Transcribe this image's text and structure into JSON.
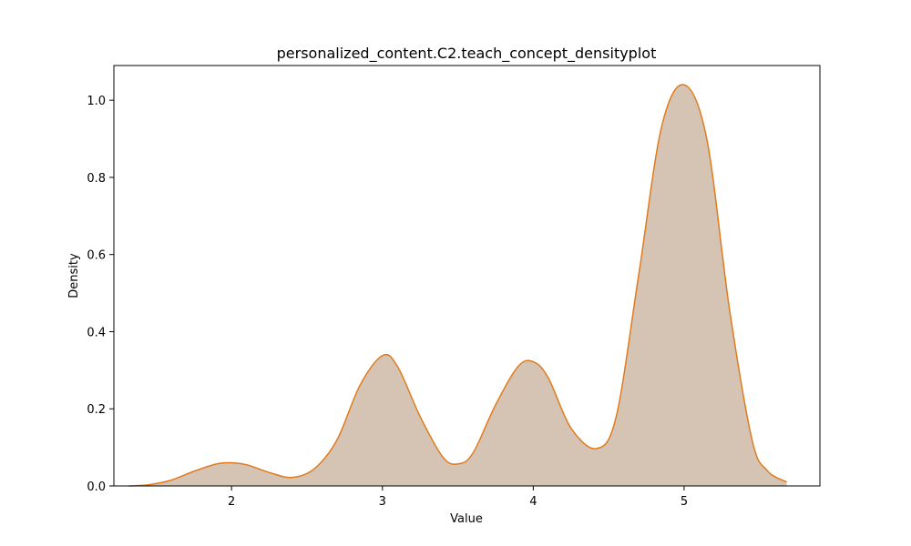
{
  "chart_data": {
    "type": "area",
    "title": "personalized_content.C2.teach_concept_densityplot",
    "xlabel": "Value",
    "ylabel": "Density",
    "xlim": [
      1.22,
      5.9
    ],
    "ylim": [
      0,
      1.09
    ],
    "xticks": [
      2,
      3,
      4,
      5
    ],
    "yticks": [
      0.0,
      0.2,
      0.4,
      0.6,
      0.8,
      1.0
    ],
    "ytick_labels": [
      "0.0",
      "0.2",
      "0.4",
      "0.6",
      "0.8",
      "1.0"
    ],
    "grid": false,
    "series": [
      {
        "x": [
          1.32,
          1.45,
          1.6,
          1.75,
          1.9,
          2.0,
          2.1,
          2.25,
          2.4,
          2.55,
          2.7,
          2.85,
          3.0,
          3.1,
          3.25,
          3.4,
          3.5,
          3.6,
          3.75,
          3.9,
          4.0,
          4.1,
          4.25,
          4.42,
          4.55,
          4.7,
          4.85,
          5.0,
          5.15,
          5.3,
          5.45,
          5.55,
          5.68
        ],
        "y": [
          0.0,
          0.003,
          0.015,
          0.038,
          0.057,
          0.06,
          0.055,
          0.035,
          0.022,
          0.045,
          0.12,
          0.26,
          0.338,
          0.31,
          0.18,
          0.075,
          0.057,
          0.085,
          0.21,
          0.31,
          0.322,
          0.28,
          0.15,
          0.097,
          0.18,
          0.55,
          0.93,
          1.04,
          0.9,
          0.46,
          0.12,
          0.04,
          0.01
        ],
        "fill_color": "#d5c4b4",
        "line_color": "#e07b1c"
      }
    ]
  }
}
